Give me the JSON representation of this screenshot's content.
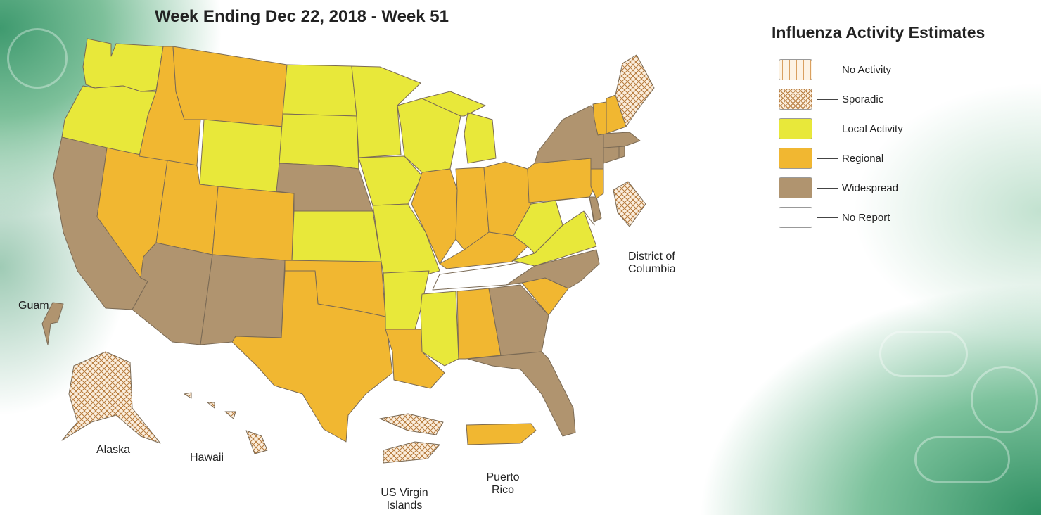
{
  "title": "Week Ending Dec 22, 2018 - Week 51",
  "legend": {
    "title": "Influenza Activity Estimates",
    "items": [
      {
        "label": "No Activity",
        "key": "no_activity"
      },
      {
        "label": "Sporadic",
        "key": "sporadic"
      },
      {
        "label": "Local Activity",
        "key": "local"
      },
      {
        "label": "Regional",
        "key": "regional"
      },
      {
        "label": "Widespread",
        "key": "widespread"
      },
      {
        "label": "No Report",
        "key": "no_report"
      }
    ]
  },
  "colors": {
    "no_activity": "#fdf3e4",
    "sporadic": "#fbeedd",
    "local": "#e8e83a",
    "regional": "#f1b731",
    "widespread": "#b0946f",
    "no_report": "#ffffff",
    "border": "#7a6a55"
  },
  "labels": {
    "dc_line1": "District of",
    "dc_line2": "Columbia",
    "guam": "Guam",
    "alaska": "Alaska",
    "hawaii": "Hawaii",
    "usvi_line1": "US Virgin",
    "usvi_line2": "Islands",
    "pr_line1": "Puerto",
    "pr_line2": "Rico"
  },
  "states": {
    "WA": "local",
    "OR": "local",
    "CA": "widespread",
    "NV": "regional",
    "ID": "regional",
    "MT": "regional",
    "WY": "local",
    "UT": "regional",
    "AZ": "widespread",
    "CO": "regional",
    "NM": "widespread",
    "ND": "local",
    "SD": "local",
    "NE": "widespread",
    "KS": "local",
    "OK": "regional",
    "TX": "regional",
    "MN": "local",
    "IA": "local",
    "MO": "local",
    "AR": "local",
    "LA": "regional",
    "WI": "local",
    "MI": "local",
    "IL": "regional",
    "IN": "regional",
    "OH": "regional",
    "KY": "regional",
    "TN": "no_report",
    "MS": "local",
    "AL": "regional",
    "GA": "widespread",
    "FL": "widespread",
    "SC": "regional",
    "NC": "widespread",
    "VA": "local",
    "WV": "local",
    "MD": "no_report",
    "DE": "widespread",
    "PA": "regional",
    "NJ": "regional",
    "NY": "widespread",
    "CT": "widespread",
    "RI": "widespread",
    "MA": "widespread",
    "VT": "regional",
    "NH": "regional",
    "ME": "sporadic",
    "DC": "sporadic",
    "AK": "sporadic",
    "HI": "sporadic",
    "GU": "widespread",
    "VI": "sporadic",
    "PR": "regional"
  }
}
